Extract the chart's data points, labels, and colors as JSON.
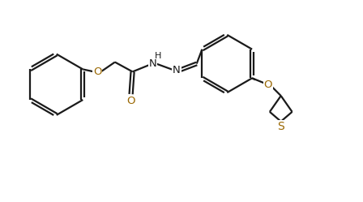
{
  "bg_color": "#ffffff",
  "line_color": "#1a1a1a",
  "o_color": "#996600",
  "s_color": "#996600",
  "lw": 1.6,
  "figsize": [
    4.48,
    2.49
  ],
  "dpi": 100,
  "xlim": [
    0,
    4.48
  ],
  "ylim": [
    0,
    2.49
  ]
}
